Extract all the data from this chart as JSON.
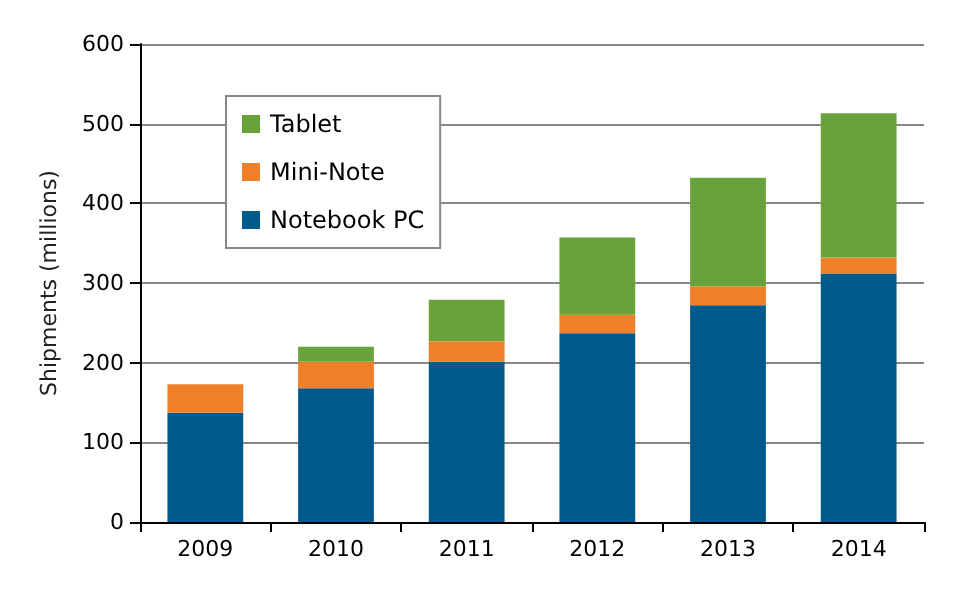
{
  "chart_data": {
    "type": "bar",
    "stacked": true,
    "ylabel": "Shipments (millions)",
    "categories": [
      "2009",
      "2010",
      "2011",
      "2012",
      "2013",
      "2014"
    ],
    "series": [
      {
        "name": "Notebook PC",
        "color": "#005a8c",
        "values": [
          137,
          168,
          201,
          237,
          272,
          312
        ]
      },
      {
        "name": "Mini-Note",
        "color": "#f07f2a",
        "values": [
          36,
          33,
          26,
          23,
          24,
          20
        ]
      },
      {
        "name": "Tablet",
        "color": "#67a33a",
        "values": [
          0,
          19,
          52,
          97,
          136,
          181
        ]
      }
    ],
    "ylim": [
      0,
      600
    ],
    "yticks": [
      0,
      100,
      200,
      300,
      400,
      500,
      600
    ],
    "grid": "y",
    "legend": "top left"
  }
}
